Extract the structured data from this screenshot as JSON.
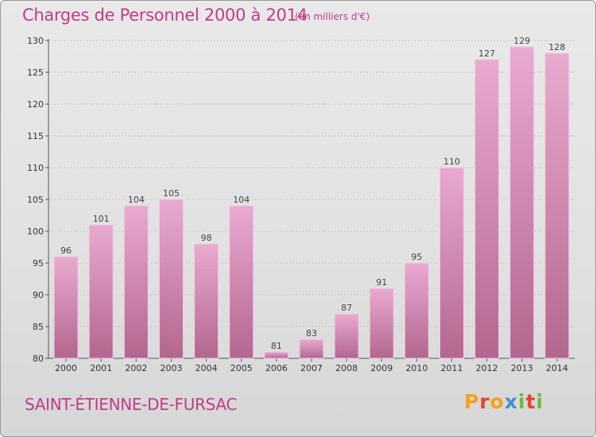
{
  "header": {
    "title": "Charges de Personnel 2000 à 2014",
    "subtitle": "(en milliers d'€)"
  },
  "footer": {
    "commune": "SAINT-ÉTIENNE-DE-FURSAC",
    "logo": "Proxiti"
  },
  "colors": {
    "accent": "#c23b87",
    "bar_light": "#e8a9cf",
    "bar_dark": "#b5688f"
  },
  "chart_data": {
    "type": "bar",
    "title": "Charges de Personnel 2000 à 2014",
    "subtitle": "(en milliers d'€)",
    "categories": [
      "2000",
      "2001",
      "2002",
      "2003",
      "2004",
      "2005",
      "2006",
      "2007",
      "2008",
      "2009",
      "2010",
      "2011",
      "2012",
      "2013",
      "2014"
    ],
    "values": [
      96,
      101,
      104,
      105,
      98,
      104,
      81,
      83,
      87,
      91,
      95,
      110,
      127,
      129,
      128
    ],
    "ylim": [
      80,
      130
    ],
    "yticks": [
      80,
      85,
      90,
      95,
      100,
      105,
      110,
      115,
      120,
      125,
      130
    ],
    "xlabel": "",
    "ylabel": "",
    "grid": true,
    "legend": "none"
  }
}
